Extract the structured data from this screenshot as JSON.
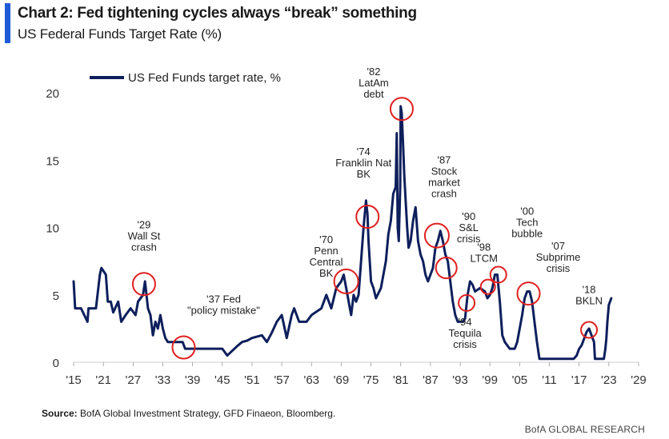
{
  "header": {
    "title": "Chart 2: Fed tightening cycles always “break” something",
    "subtitle": "US Federal Funds Target Rate (%)"
  },
  "footer": {
    "source_label": "Source:",
    "source_text": "BofA Global Investment Strategy, GFD Finaeon, Bloomberg.",
    "brand": "BofA GLOBAL RESEARCH"
  },
  "colors": {
    "line": "#0e1f5c",
    "circle": "#e02020",
    "accent": "#1f5bd6"
  },
  "chart_data": {
    "type": "line",
    "title": "US Federal Funds Target Rate (%)",
    "xlabel": "",
    "ylabel": "",
    "xlim": [
      1915,
      2029
    ],
    "ylim": [
      0,
      20
    ],
    "y_ticks": [
      0,
      5,
      10,
      15,
      20
    ],
    "x_ticks": [
      1915,
      1921,
      1927,
      1933,
      1939,
      1945,
      1951,
      1957,
      1963,
      1969,
      1975,
      1981,
      1987,
      1993,
      1999,
      2005,
      2011,
      2017,
      2023,
      2029
    ],
    "x_tick_labels": [
      "'15",
      "'21",
      "'27",
      "'33",
      "'39",
      "'45",
      "'51",
      "'57",
      "'63",
      "'69",
      "'75",
      "'81",
      "'87",
      "'93",
      "'99",
      "'05",
      "'11",
      "'17",
      "'23",
      "'29"
    ],
    "grid": false,
    "legend": {
      "position": "top-left",
      "entries": [
        "US Fed Funds target rate, %"
      ]
    },
    "series": [
      {
        "name": "US Fed Funds target rate, %",
        "x": [
          1915.0,
          1915.3,
          1916.5,
          1917.8,
          1918.0,
          1919.5,
          1920.3,
          1920.6,
          1921.5,
          1921.9,
          1922.5,
          1923.0,
          1924.0,
          1924.6,
          1925.5,
          1926.5,
          1927.5,
          1928.0,
          1929.0,
          1929.4,
          1930.0,
          1930.5,
          1931.0,
          1931.5,
          1932.0,
          1932.5,
          1933.0,
          1933.5,
          1934.0,
          1935.0,
          1936.0,
          1937.0,
          1937.5,
          1938.0,
          1939.0,
          1940.0,
          1942.0,
          1945.0,
          1946.0,
          1948.0,
          1949.0,
          1950.0,
          1951.0,
          1953.0,
          1954.0,
          1955.0,
          1956.0,
          1957.0,
          1958.0,
          1959.0,
          1959.5,
          1960.5,
          1961.0,
          1962.0,
          1963.0,
          1964.0,
          1965.0,
          1966.0,
          1967.0,
          1968.0,
          1969.0,
          1969.5,
          1970.0,
          1970.5,
          1971.0,
          1971.5,
          1972.0,
          1972.5,
          1973.0,
          1973.5,
          1974.0,
          1974.3,
          1974.5,
          1975.0,
          1975.5,
          1976.0,
          1977.0,
          1977.5,
          1978.0,
          1978.5,
          1979.0,
          1979.5,
          1980.0,
          1980.2,
          1980.4,
          1980.6,
          1980.9,
          1981.0,
          1981.2,
          1981.5,
          1981.7,
          1982.0,
          1982.3,
          1982.6,
          1983.0,
          1983.5,
          1984.0,
          1984.5,
          1985.0,
          1985.5,
          1986.0,
          1986.5,
          1987.0,
          1987.5,
          1988.0,
          1988.5,
          1989.0,
          1989.5,
          1990.0,
          1990.5,
          1991.0,
          1991.5,
          1992.0,
          1992.5,
          1993.0,
          1993.5,
          1994.0,
          1994.5,
          1995.0,
          1995.5,
          1996.0,
          1997.0,
          1998.0,
          1998.5,
          1999.0,
          1999.5,
          2000.0,
          2000.5,
          2001.0,
          2001.5,
          2002.0,
          2003.0,
          2004.0,
          2004.5,
          2005.0,
          2005.5,
          2006.0,
          2006.5,
          2007.0,
          2007.5,
          2008.0,
          2008.5,
          2009.0,
          2012.0,
          2015.0,
          2015.9,
          2016.5,
          2017.0,
          2017.5,
          2018.0,
          2018.5,
          2019.0,
          2019.5,
          2020.0,
          2020.2,
          2020.5,
          2021.0,
          2022.0,
          2022.3,
          2022.5,
          2022.7,
          2023.0,
          2023.5
        ],
        "values": [
          6.0,
          4.0,
          4.0,
          3.0,
          4.0,
          4.0,
          6.5,
          7.0,
          6.5,
          4.5,
          4.5,
          3.7,
          4.5,
          3.0,
          3.5,
          4.0,
          3.5,
          4.5,
          5.0,
          6.0,
          4.0,
          3.5,
          2.0,
          3.0,
          2.5,
          3.5,
          2.5,
          1.8,
          1.5,
          1.5,
          1.5,
          1.5,
          1.0,
          1.0,
          1.0,
          1.0,
          1.0,
          1.0,
          0.5,
          1.2,
          1.5,
          1.6,
          1.8,
          2.0,
          1.5,
          2.2,
          3.0,
          3.5,
          1.8,
          3.5,
          4.0,
          3.0,
          3.0,
          3.0,
          3.5,
          3.75,
          4.0,
          5.0,
          4.0,
          5.5,
          6.0,
          6.5,
          5.5,
          4.5,
          3.5,
          5.0,
          4.5,
          5.0,
          7.5,
          10.0,
          12.0,
          11.0,
          9.0,
          6.0,
          5.5,
          4.75,
          5.5,
          6.5,
          7.5,
          9.5,
          10.5,
          12.5,
          13.0,
          17.0,
          10.0,
          9.0,
          13.0,
          19.0,
          18.5,
          16.0,
          14.0,
          12.0,
          10.0,
          8.5,
          9.0,
          10.5,
          11.5,
          9.0,
          8.0,
          7.5,
          6.5,
          6.0,
          6.5,
          7.0,
          8.5,
          9.0,
          9.75,
          9.0,
          8.0,
          7.5,
          6.0,
          4.5,
          3.5,
          3.0,
          3.0,
          3.0,
          3.25,
          5.0,
          6.0,
          5.75,
          5.25,
          5.5,
          5.25,
          4.75,
          5.0,
          5.5,
          6.5,
          6.5,
          4.5,
          2.0,
          1.5,
          1.0,
          1.0,
          1.5,
          2.5,
          3.5,
          4.75,
          5.25,
          5.25,
          4.5,
          3.0,
          1.5,
          0.25,
          0.25,
          0.25,
          0.25,
          0.5,
          1.0,
          1.25,
          1.75,
          2.25,
          2.5,
          2.0,
          1.5,
          0.25,
          0.25,
          0.25,
          0.25,
          1.0,
          1.75,
          3.0,
          4.25,
          4.75
        ]
      }
    ],
    "annotations": [
      {
        "label": "'29 Wall St crash",
        "x": 1929.2,
        "y": 5.8,
        "lines": [
          "'29",
          "Wall St",
          "crash"
        ]
      },
      {
        "label": "'37 Fed \"policy mistake\"",
        "x": 1937.2,
        "y": 1.1,
        "lines": [
          "'37 Fed",
          "\"policy mistake\""
        ]
      },
      {
        "label": "'70 Penn Central BK",
        "x": 1970.0,
        "y": 6.0,
        "lines": [
          "'70",
          "Penn",
          "Central",
          "BK"
        ]
      },
      {
        "label": "'74 Franklin Nat BK",
        "x": 1974.3,
        "y": 10.8,
        "lines": [
          "'74",
          "Franklin Nat",
          "BK"
        ]
      },
      {
        "label": "'82 LatAm debt",
        "x": 1981.2,
        "y": 18.8,
        "lines": [
          "'82",
          "LatAm",
          "debt"
        ]
      },
      {
        "label": "'87 Stock market crash",
        "x": 1988.3,
        "y": 9.4,
        "lines": [
          "'87",
          "Stock",
          "market",
          "crash"
        ]
      },
      {
        "label": "'90 S&L crisis",
        "x": 1990.2,
        "y": 7.0,
        "lines": [
          "'90",
          "S&L",
          "crisis"
        ]
      },
      {
        "label": "'94 Tequila crisis",
        "x": 1994.3,
        "y": 4.4,
        "lines": [
          "'94",
          "Tequila",
          "crisis"
        ]
      },
      {
        "label": "'98 LTCM",
        "x": 1998.6,
        "y": 5.6,
        "lines": [
          "'98",
          "LTCM"
        ]
      },
      {
        "label": "'00 Tech bubble",
        "x": 2000.7,
        "y": 6.5,
        "lines": [
          "'00",
          "Tech",
          "bubble"
        ]
      },
      {
        "label": "'07 Subprime crisis",
        "x": 2006.8,
        "y": 5.1,
        "lines": [
          "'07",
          "Subprime",
          "crisis"
        ]
      },
      {
        "label": "'18 BKLN",
        "x": 2019.0,
        "y": 2.4,
        "lines": [
          "'18",
          "BKLN"
        ]
      }
    ]
  }
}
